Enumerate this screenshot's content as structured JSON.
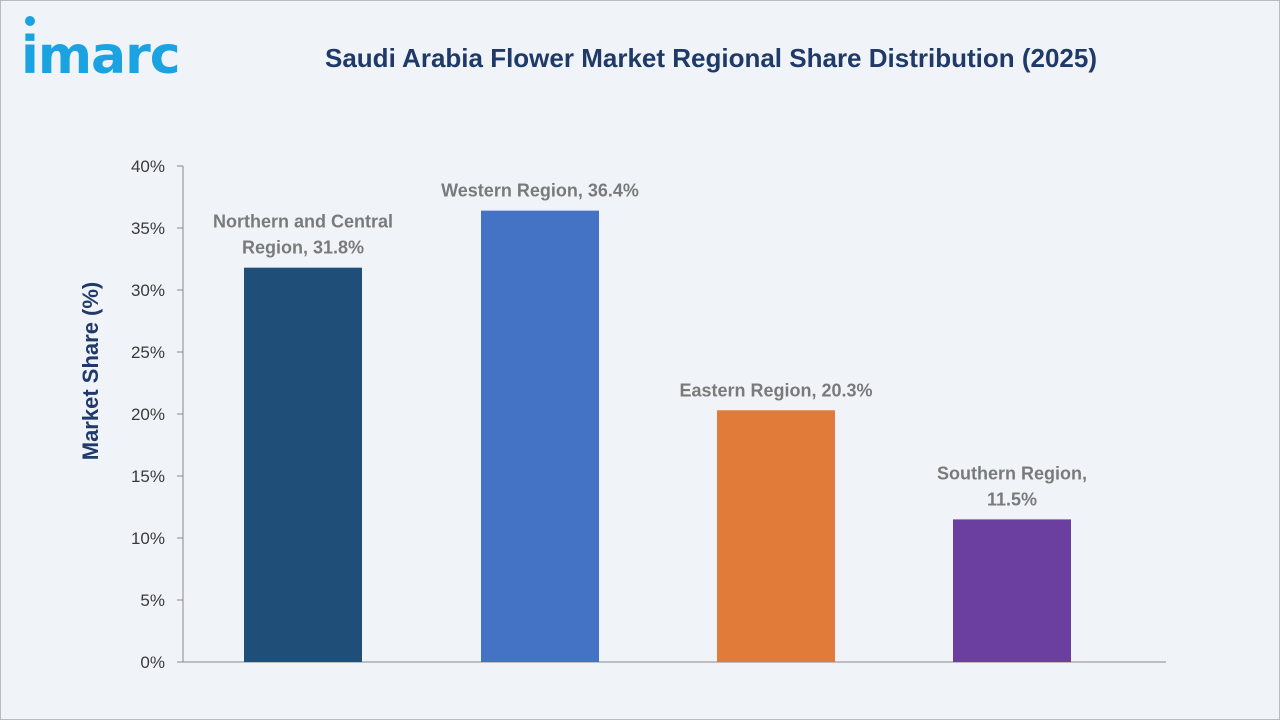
{
  "logo": {
    "text": "imarc",
    "color": "#1aa3e0"
  },
  "colors": {
    "background": "#f0f4f9",
    "title": "#1f3a68",
    "axis": "#888888",
    "data_label": "#7a7a7a"
  },
  "chart_data": {
    "type": "bar",
    "title": "Saudi Arabia Flower Market Regional Share Distribution (2025)",
    "xlabel": "",
    "ylabel": "Market Share (%)",
    "ylim": [
      0,
      40
    ],
    "yticks": [
      "0%",
      "5%",
      "10%",
      "15%",
      "20%",
      "25%",
      "30%",
      "35%",
      "40%"
    ],
    "ytick_values": [
      0,
      5,
      10,
      15,
      20,
      25,
      30,
      35,
      40
    ],
    "grid": false,
    "legend": "none",
    "categories": [
      "Northern and Central Region",
      "Western Region",
      "Eastern Region",
      "Southern Region"
    ],
    "values": [
      31.8,
      36.4,
      20.3,
      11.5
    ],
    "data_labels": [
      [
        "Northern and Central",
        "Region, 31.8%"
      ],
      [
        "Western Region, 36.4%"
      ],
      [
        "Eastern Region, 20.3%"
      ],
      [
        "Southern Region,",
        "11.5%"
      ]
    ],
    "bar_colors": [
      "#1f4e79",
      "#4472c4",
      "#e07b39",
      "#6b3fa0"
    ]
  }
}
